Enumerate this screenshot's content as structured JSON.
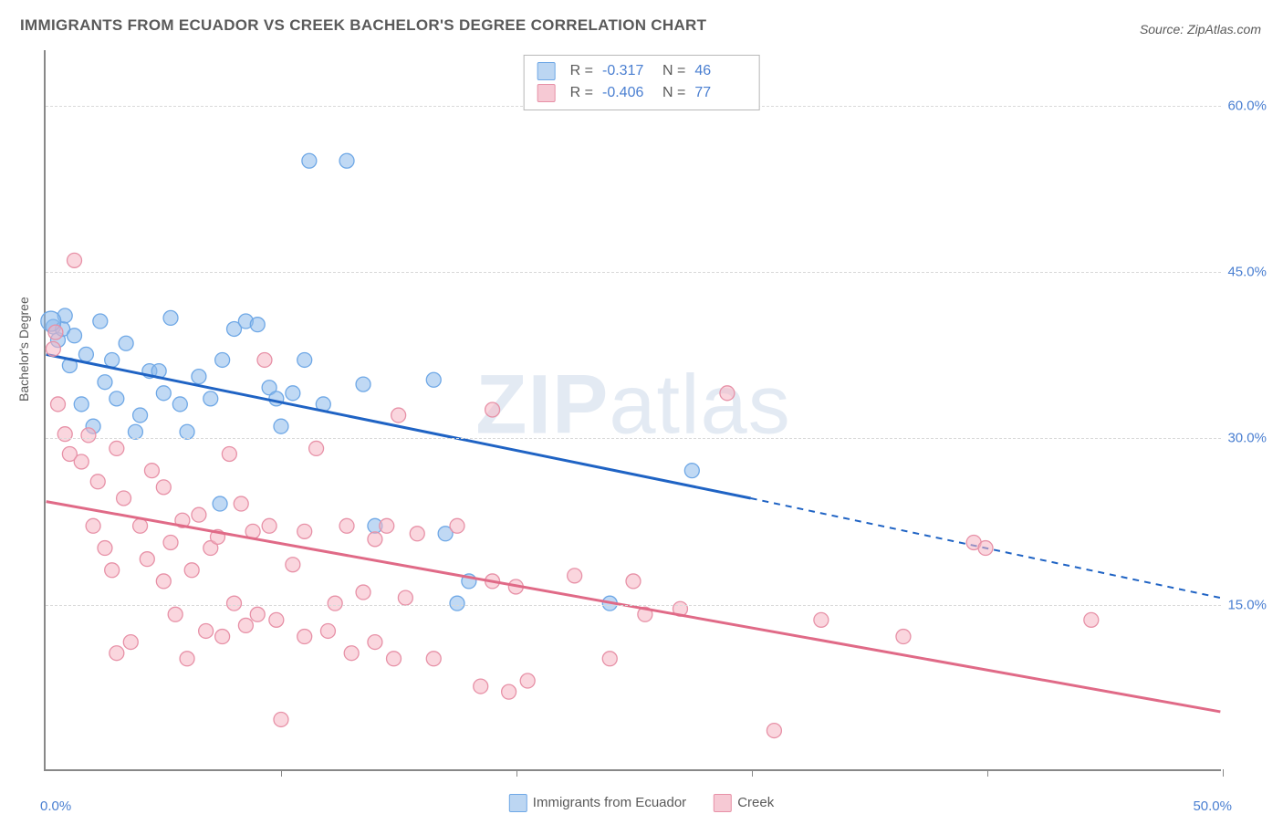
{
  "title": "IMMIGRANTS FROM ECUADOR VS CREEK BACHELOR'S DEGREE CORRELATION CHART",
  "source": "Source: ZipAtlas.com",
  "watermark_a": "ZIP",
  "watermark_b": "atlas",
  "chart": {
    "type": "scatter",
    "ylabel": "Bachelor's Degree",
    "xlim": [
      0,
      50
    ],
    "ylim": [
      0,
      65
    ],
    "xtick_positions_pct": [
      10,
      20,
      30,
      40,
      50
    ],
    "ytick_labels": [
      "15.0%",
      "30.0%",
      "45.0%",
      "60.0%"
    ],
    "ytick_values": [
      15,
      30,
      45,
      60
    ],
    "xlabel_min": "0.0%",
    "xlabel_max": "50.0%",
    "grid_color": "#d9d9d9",
    "background_color": "#ffffff",
    "axis_color": "#888888",
    "ylabel_color": "#4a7fd1",
    "label_fontsize": 15,
    "title_fontsize": 17
  },
  "legend_correlation": {
    "rows": [
      {
        "swatch_fill": "#bcd6f2",
        "swatch_border": "#6fa8e6",
        "r_label": "R =",
        "r": "-0.317",
        "n_label": "N =",
        "n": "46"
      },
      {
        "swatch_fill": "#f6c9d4",
        "swatch_border": "#e791a7",
        "r_label": "R =",
        "r": "-0.406",
        "n_label": "N =",
        "n": "77"
      }
    ]
  },
  "legend_bottom": {
    "items": [
      {
        "swatch_fill": "#bcd6f2",
        "swatch_border": "#6fa8e6",
        "label": "Immigrants from Ecuador"
      },
      {
        "swatch_fill": "#f6c9d4",
        "swatch_border": "#e791a7",
        "label": "Creek"
      }
    ]
  },
  "series": [
    {
      "name": "Immigrants from Ecuador",
      "color_fill": "rgba(140,185,235,0.55)",
      "color_stroke": "#6fa8e6",
      "marker_radius": 8,
      "trend": {
        "color": "#1f63c4",
        "width": 3,
        "solid_from": [
          0,
          37.5
        ],
        "solid_to": [
          30,
          24.5
        ],
        "dash_from": [
          30,
          24.5
        ],
        "dash_to": [
          50,
          15.5
        ]
      },
      "points": [
        [
          0.3,
          40.0
        ],
        [
          0.5,
          38.8
        ],
        [
          0.7,
          39.8
        ],
        [
          0.8,
          41.0
        ],
        [
          1.0,
          36.5
        ],
        [
          1.2,
          39.2
        ],
        [
          1.5,
          33.0
        ],
        [
          1.7,
          37.5
        ],
        [
          2.0,
          31.0
        ],
        [
          2.3,
          40.5
        ],
        [
          2.5,
          35.0
        ],
        [
          2.8,
          37.0
        ],
        [
          3.0,
          33.5
        ],
        [
          3.4,
          38.5
        ],
        [
          3.8,
          30.5
        ],
        [
          4.0,
          32.0
        ],
        [
          4.4,
          36.0
        ],
        [
          4.8,
          36.0
        ],
        [
          5.0,
          34.0
        ],
        [
          5.3,
          40.8
        ],
        [
          5.7,
          33.0
        ],
        [
          6.0,
          30.5
        ],
        [
          6.5,
          35.5
        ],
        [
          7.0,
          33.5
        ],
        [
          7.4,
          24.0
        ],
        [
          7.5,
          37.0
        ],
        [
          8.0,
          39.8
        ],
        [
          8.5,
          40.5
        ],
        [
          9.0,
          40.2
        ],
        [
          9.5,
          34.5
        ],
        [
          9.8,
          33.5
        ],
        [
          10.0,
          31.0
        ],
        [
          10.5,
          34.0
        ],
        [
          11.0,
          37.0
        ],
        [
          11.2,
          55.0
        ],
        [
          11.8,
          33.0
        ],
        [
          12.8,
          55.0
        ],
        [
          13.5,
          34.8
        ],
        [
          14.0,
          22.0
        ],
        [
          16.5,
          35.2
        ],
        [
          17.0,
          21.3
        ],
        [
          17.5,
          15.0
        ],
        [
          18.0,
          17.0
        ],
        [
          24.0,
          15.0
        ],
        [
          27.5,
          27.0
        ],
        [
          0.2,
          40.5,
          11
        ]
      ]
    },
    {
      "name": "Creek",
      "color_fill": "rgba(245,180,195,0.55)",
      "color_stroke": "#e791a7",
      "marker_radius": 8,
      "trend": {
        "color": "#e06a87",
        "width": 3,
        "solid_from": [
          0,
          24.2
        ],
        "solid_to": [
          50,
          5.2
        ]
      },
      "points": [
        [
          0.3,
          38.0
        ],
        [
          0.5,
          33.0
        ],
        [
          0.8,
          30.3
        ],
        [
          1.0,
          28.5
        ],
        [
          1.2,
          46.0
        ],
        [
          1.5,
          27.8
        ],
        [
          1.8,
          30.2
        ],
        [
          2.0,
          22.0
        ],
        [
          2.2,
          26.0
        ],
        [
          2.5,
          20.0
        ],
        [
          2.8,
          18.0
        ],
        [
          3.0,
          29.0
        ],
        [
          3.0,
          10.5
        ],
        [
          3.3,
          24.5
        ],
        [
          3.6,
          11.5
        ],
        [
          4.0,
          22.0
        ],
        [
          4.3,
          19.0
        ],
        [
          4.5,
          27.0
        ],
        [
          5.0,
          25.5
        ],
        [
          5.0,
          17.0
        ],
        [
          5.3,
          20.5
        ],
        [
          5.5,
          14.0
        ],
        [
          5.8,
          22.5
        ],
        [
          6.0,
          10.0
        ],
        [
          6.2,
          18.0
        ],
        [
          6.5,
          23.0
        ],
        [
          6.8,
          12.5
        ],
        [
          7.0,
          20.0
        ],
        [
          7.3,
          21.0
        ],
        [
          7.5,
          12.0
        ],
        [
          7.8,
          28.5
        ],
        [
          8.0,
          15.0
        ],
        [
          8.3,
          24.0
        ],
        [
          8.5,
          13.0
        ],
        [
          8.8,
          21.5
        ],
        [
          9.0,
          14.0
        ],
        [
          9.3,
          37.0
        ],
        [
          9.5,
          22.0
        ],
        [
          9.8,
          13.5
        ],
        [
          10.0,
          4.5
        ],
        [
          10.5,
          18.5
        ],
        [
          11.0,
          12.0
        ],
        [
          11.0,
          21.5
        ],
        [
          11.5,
          29.0
        ],
        [
          12.0,
          12.5
        ],
        [
          12.3,
          15.0
        ],
        [
          12.8,
          22.0
        ],
        [
          13.0,
          10.5
        ],
        [
          13.5,
          16.0
        ],
        [
          14.0,
          11.5
        ],
        [
          14.0,
          20.8
        ],
        [
          14.5,
          22.0
        ],
        [
          14.8,
          10.0
        ],
        [
          15.0,
          32.0
        ],
        [
          15.3,
          15.5
        ],
        [
          15.8,
          21.3
        ],
        [
          16.5,
          10.0
        ],
        [
          17.5,
          22.0
        ],
        [
          18.5,
          7.5
        ],
        [
          19.0,
          17.0
        ],
        [
          19.0,
          32.5
        ],
        [
          19.7,
          7.0
        ],
        [
          20.0,
          16.5
        ],
        [
          20.5,
          8.0
        ],
        [
          22.5,
          17.5
        ],
        [
          24.0,
          10.0
        ],
        [
          25.0,
          17.0
        ],
        [
          25.5,
          14.0
        ],
        [
          27.0,
          14.5
        ],
        [
          29.0,
          34.0
        ],
        [
          31.0,
          3.5
        ],
        [
          33.0,
          13.5
        ],
        [
          36.5,
          12.0
        ],
        [
          39.5,
          20.5
        ],
        [
          40.0,
          20.0
        ],
        [
          44.5,
          13.5
        ],
        [
          0.4,
          39.5
        ]
      ]
    }
  ]
}
